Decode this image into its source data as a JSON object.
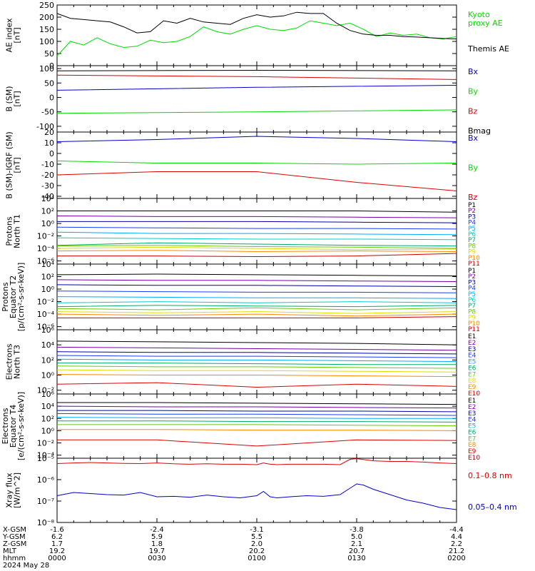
{
  "colors": {
    "black": "#000000",
    "green": "#00dd00",
    "blue": "#0000cc",
    "red": "#dd0000",
    "purple": "#7700aa",
    "violet": "#aa00aa",
    "navy": "#0000aa",
    "royal": "#1a3cff",
    "sky": "#00aaff",
    "cyan": "#00cccc",
    "teal": "#00aa66",
    "lime": "#66cc00",
    "yellow": "#dddd00",
    "gold": "#e0b000",
    "orange": "#ff8800",
    "crimson": "#cc0000",
    "darkred": "#aa0000"
  },
  "chart_data": [
    {
      "type": "line",
      "id": "ae",
      "ylabel": "AE index\n[nT]",
      "ylim": [
        0,
        250
      ],
      "yticks": [
        "0",
        "50",
        "100",
        "150",
        "200",
        "250"
      ],
      "x": [
        0,
        4,
        8,
        12,
        16,
        20,
        24,
        28,
        32,
        36,
        40,
        44,
        48,
        52,
        56,
        60,
        64,
        68,
        72,
        76,
        80,
        84,
        88,
        92,
        96,
        100,
        104,
        108,
        112,
        116,
        120
      ],
      "series": [
        {
          "name": "Kyoto\nproxy AE",
          "color": "green",
          "values": [
            40,
            100,
            85,
            115,
            90,
            75,
            80,
            105,
            95,
            100,
            120,
            160,
            140,
            130,
            150,
            165,
            150,
            145,
            155,
            185,
            175,
            165,
            175,
            150,
            120,
            135,
            125,
            130,
            115,
            110,
            120
          ]
        },
        {
          "name": "Themis AE",
          "color": "black",
          "values": [
            215,
            195,
            190,
            185,
            180,
            160,
            135,
            140,
            185,
            175,
            195,
            180,
            175,
            170,
            195,
            210,
            200,
            205,
            220,
            215,
            215,
            175,
            145,
            130,
            125,
            125,
            120,
            118,
            115,
            112,
            110
          ]
        }
      ]
    },
    {
      "type": "line",
      "id": "bsm",
      "ylabel": "B (SM)\n[nT]",
      "ylim": [
        -120,
        110
      ],
      "yticks": [
        "-100",
        "-50",
        "0",
        "50",
        "100"
      ],
      "series": [
        {
          "name": "Bx",
          "color": "blue",
          "values": [
            25,
            35,
            42
          ]
        },
        {
          "name": "By",
          "color": "green",
          "values": [
            -55,
            -50,
            -43
          ]
        },
        {
          "name": "Bz",
          "color": "red",
          "values": [
            77,
            72,
            62
          ]
        },
        {
          "name": "Bmag",
          "color": "black",
          "values": [
            92,
            94,
            92
          ]
        }
      ]
    },
    {
      "type": "line",
      "id": "bigrf",
      "ylabel": "B (SM)-IGRF (SM)\n[nT]",
      "ylim": [
        -42,
        20
      ],
      "yticks": [
        "-40",
        "-30",
        "-20",
        "-10",
        "0",
        "10",
        "20"
      ],
      "series": [
        {
          "name": "Bx",
          "color": "blue",
          "values": [
            11,
            13,
            16,
            14,
            11
          ]
        },
        {
          "name": "By",
          "color": "green",
          "values": [
            -7,
            -9,
            -9,
            -10,
            -9
          ]
        },
        {
          "name": "Bz",
          "color": "red",
          "values": [
            -20,
            -17,
            -17,
            -27,
            -35
          ]
        }
      ]
    },
    {
      "type": "line",
      "id": "pn",
      "ylabel": "Protons\nNorth T1",
      "log": true,
      "ylim": [
        -6.5,
        4
      ],
      "yticks": [
        "10⁻⁶",
        "10⁻⁴",
        "10⁻²",
        "10⁰",
        "10²",
        "10⁴"
      ],
      "series": [
        {
          "name": "P1",
          "color": "black",
          "values": [
            2,
            2,
            2,
            2,
            1.8
          ]
        },
        {
          "name": "P2",
          "color": "purple",
          "values": [
            1.2,
            1.1,
            1.1,
            1.0,
            0.9
          ]
        },
        {
          "name": "P3",
          "color": "navy",
          "values": [
            0.3,
            0.3,
            0.3,
            0.2,
            0.1
          ]
        },
        {
          "name": "P4",
          "color": "royal",
          "values": [
            -0.6,
            -0.7,
            -0.8,
            -0.8,
            -0.9
          ]
        },
        {
          "name": "P5",
          "color": "sky",
          "values": [
            -1.4,
            -1.6,
            -1.6,
            -1.7,
            -1.8
          ]
        },
        {
          "name": "P6",
          "color": "cyan",
          "values": [
            -2.3,
            -2.4,
            -2.5,
            -2.5,
            -2.6
          ]
        },
        {
          "name": "P7",
          "color": "teal",
          "values": [
            -3.5,
            -3.1,
            -3.3,
            -3.5,
            -3.6
          ]
        },
        {
          "name": "P8",
          "color": "lime",
          "values": [
            -3.6,
            -3.5,
            -3.7,
            -3.8,
            -4.0
          ]
        },
        {
          "name": "P9",
          "color": "yellow",
          "values": [
            -4.0,
            -3.8,
            -4.0,
            -4.2,
            -4.1
          ]
        },
        {
          "name": "P10",
          "color": "orange",
          "values": [
            -4.4,
            -4.3,
            -4.5,
            -4.4,
            -4.5
          ]
        },
        {
          "name": "P11",
          "color": "crimson",
          "values": [
            -5.2,
            -5.2,
            -5.3,
            -5.2,
            -4.8
          ]
        }
      ]
    },
    {
      "type": "line",
      "id": "pe",
      "ylabel": "Protons\nEquator T2\n[p/(cm²-s-sr-keV)]",
      "log": true,
      "ylim": [
        -6.5,
        4
      ],
      "yticks": [
        "10⁻⁶",
        "10⁻⁴",
        "10⁻²",
        "10⁰",
        "10²",
        "10⁴"
      ],
      "series": [
        {
          "name": "P1",
          "color": "black",
          "values": [
            2.3,
            2.4,
            2.3,
            2.2,
            2.1
          ]
        },
        {
          "name": "P2",
          "color": "purple",
          "values": [
            1.5,
            1.4,
            1.4,
            1.3,
            1.2
          ]
        },
        {
          "name": "P3",
          "color": "navy",
          "values": [
            0.7,
            0.6,
            0.6,
            0.5,
            0.4
          ]
        },
        {
          "name": "P4",
          "color": "royal",
          "values": [
            -0.3,
            -0.4,
            -0.5,
            -0.5,
            -0.6
          ]
        },
        {
          "name": "P5",
          "color": "sky",
          "values": [
            -1.2,
            -1.3,
            -1.4,
            -1.4,
            -1.5
          ]
        },
        {
          "name": "P6",
          "color": "cyan",
          "values": [
            -2.2,
            -2.0,
            -2.2,
            -2.0,
            -2.2
          ]
        },
        {
          "name": "P7",
          "color": "teal",
          "values": [
            -2.8,
            -2.6,
            -2.7,
            -2.8,
            -2.6
          ]
        },
        {
          "name": "P8",
          "color": "lime",
          "values": [
            -3.1,
            -3.3,
            -3.0,
            -3.3,
            -3.0
          ]
        },
        {
          "name": "P9",
          "color": "yellow",
          "values": [
            -3.6,
            -3.8,
            -3.6,
            -3.9,
            -3.6
          ]
        },
        {
          "name": "P10",
          "color": "orange",
          "values": [
            -4.0,
            -4.2,
            -4.0,
            -4.3,
            -4.0
          ]
        },
        {
          "name": "P11",
          "color": "crimson",
          "values": [
            -4.6,
            -4.6,
            -4.6,
            -4.6,
            -4.4
          ]
        }
      ]
    },
    {
      "type": "line",
      "id": "en",
      "ylabel": "Electrons\nNorth T3",
      "log": true,
      "ylim": [
        -2.5,
        6
      ],
      "yticks": [
        "10⁻²",
        "10⁰",
        "10²",
        "10⁴",
        "10⁶"
      ],
      "series": [
        {
          "name": "E1",
          "color": "black",
          "values": [
            4.5,
            4.4,
            4.3,
            4.2,
            4.0
          ]
        },
        {
          "name": "E2",
          "color": "purple",
          "values": [
            3.7,
            3.6,
            3.5,
            3.4,
            3.3
          ]
        },
        {
          "name": "E3",
          "color": "navy",
          "values": [
            3.1,
            3.0,
            3.0,
            2.9,
            2.8
          ]
        },
        {
          "name": "E4",
          "color": "royal",
          "values": [
            2.6,
            2.5,
            2.5,
            2.4,
            2.3
          ]
        },
        {
          "name": "E5",
          "color": "sky",
          "values": [
            2.1,
            2.0,
            2.0,
            1.9,
            1.8
          ]
        },
        {
          "name": "E6",
          "color": "teal",
          "values": [
            1.6,
            1.6,
            1.5,
            1.4,
            1.4
          ]
        },
        {
          "name": "E7",
          "color": "lime",
          "values": [
            1.2,
            1.1,
            1.1,
            1.0,
            0.9
          ]
        },
        {
          "name": "E8",
          "color": "yellow",
          "values": [
            0.7,
            0.6,
            0.6,
            0.5,
            0.4
          ]
        },
        {
          "name": "E9",
          "color": "orange",
          "values": [
            0.1,
            0.0,
            0.0,
            -0.1,
            -0.2
          ]
        },
        {
          "name": "E10",
          "color": "red",
          "values": [
            -1.2,
            -1.0,
            -1.6,
            -1.2,
            -1.5
          ]
        }
      ]
    },
    {
      "type": "line",
      "id": "ee",
      "ylabel": "Electrons\nEquator T4\n[e/(cm²-s-sr-keV)]",
      "log": true,
      "ylim": [
        -4.5,
        6
      ],
      "yticks": [
        "10⁻⁴",
        "10⁻²",
        "10⁰",
        "10²",
        "10⁴",
        "10⁶"
      ],
      "series": [
        {
          "name": "E1",
          "color": "black",
          "values": [
            4.6,
            4.6,
            4.5,
            4.4,
            4.3
          ]
        },
        {
          "name": "E2",
          "color": "purple",
          "values": [
            4.0,
            3.9,
            3.9,
            3.8,
            3.7
          ]
        },
        {
          "name": "E3",
          "color": "navy",
          "values": [
            3.3,
            3.3,
            3.2,
            3.2,
            3.1
          ]
        },
        {
          "name": "E4",
          "color": "royal",
          "values": [
            2.8,
            2.7,
            2.7,
            2.6,
            2.5
          ]
        },
        {
          "name": "E5",
          "color": "sky",
          "values": [
            2.2,
            2.1,
            2.1,
            2.0,
            2.0
          ]
        },
        {
          "name": "E6",
          "color": "teal",
          "values": [
            1.6,
            1.6,
            1.5,
            1.5,
            1.4
          ]
        },
        {
          "name": "E7",
          "color": "lime",
          "values": [
            1.0,
            1.0,
            1.0,
            0.9,
            0.8
          ]
        },
        {
          "name": "E8",
          "color": "orange",
          "values": [
            0.2,
            0.2,
            0.1,
            0.1,
            0.0
          ]
        },
        {
          "name": "E9",
          "color": "red",
          "values": [
            -1.5,
            -1.5,
            -2.5,
            -1.5,
            -1.6
          ]
        },
        {
          "name": "E10",
          "color": "darkred",
          "values": []
        }
      ]
    },
    {
      "type": "line",
      "id": "xray",
      "ylabel": "Xray flux\n[W/m^2]",
      "log": true,
      "ylim": [
        -8,
        -5
      ],
      "yticks": [
        "10⁻⁸",
        "10⁻⁷",
        "10⁻⁶",
        "10⁻⁵"
      ],
      "x": [
        0,
        5,
        10,
        15,
        20,
        25,
        30,
        35,
        40,
        45,
        50,
        55,
        60,
        62,
        64,
        66,
        70,
        75,
        80,
        85,
        88,
        90,
        92,
        95,
        100,
        105,
        110,
        115,
        120
      ],
      "series": [
        {
          "name": "0.1–0.8 nm",
          "color": "red",
          "values": [
            -5.25,
            -5.22,
            -5.2,
            -5.22,
            -5.24,
            -5.25,
            -5.22,
            -5.26,
            -5.28,
            -5.26,
            -5.28,
            -5.28,
            -5.3,
            -5.22,
            -5.28,
            -5.3,
            -5.28,
            -5.28,
            -5.28,
            -5.3,
            -5.05,
            -5.02,
            -5.06,
            -5.12,
            -5.15,
            -5.15,
            -5.18,
            -5.22,
            -5.25
          ]
        },
        {
          "name": "0.05–0.4 nm",
          "color": "blue",
          "values": [
            -6.75,
            -6.6,
            -6.65,
            -6.7,
            -6.72,
            -6.6,
            -6.8,
            -6.78,
            -6.82,
            -6.72,
            -6.8,
            -6.85,
            -6.75,
            -6.55,
            -6.8,
            -6.85,
            -6.8,
            -6.75,
            -6.78,
            -6.7,
            -6.4,
            -6.2,
            -6.25,
            -6.45,
            -6.7,
            -6.95,
            -7.1,
            -7.3,
            -7.4
          ]
        }
      ]
    }
  ],
  "footer": {
    "rows": [
      {
        "label": "X-GSM",
        "values": [
          "-1.6",
          "-2.4",
          "-3.1",
          "-3.8",
          "-4.4"
        ]
      },
      {
        "label": "Y-GSM",
        "values": [
          "6.2",
          "5.9",
          "5.5",
          "5.0",
          "4.4"
        ]
      },
      {
        "label": "Z-GSM",
        "values": [
          "1.7",
          "1.8",
          "2.0",
          "2.1",
          "2.2"
        ]
      },
      {
        "label": "MLT",
        "values": [
          "19.2",
          "19.7",
          "20.2",
          "20.7",
          "21.2"
        ]
      },
      {
        "label": "hhmm",
        "values": [
          "0000",
          "0030",
          "0100",
          "0130",
          "0200"
        ]
      }
    ],
    "date": "2024 May 28"
  }
}
